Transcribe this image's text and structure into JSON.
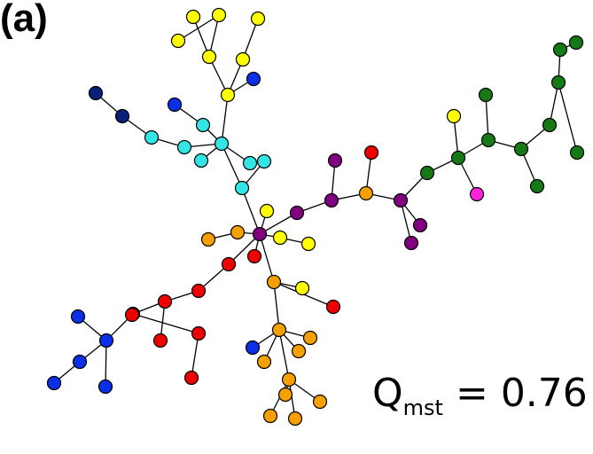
{
  "panel_label": "(a)",
  "metric": {
    "symbol": "Q",
    "subscript": "mst",
    "equals": "=",
    "value": "0.76"
  },
  "colors": {
    "yellow": "#ffff00",
    "cyan": "#33e5e5",
    "darkblue": "#0a1f7a",
    "blue": "#0a2fe6",
    "purple": "#800080",
    "red": "#ee0000",
    "orange": "#f5a000",
    "green": "#157a15",
    "magenta": "#ff22dd"
  },
  "graph": {
    "nodes": [
      {
        "id": "y1",
        "c": "yellow"
      },
      {
        "id": "y2",
        "c": "yellow"
      },
      {
        "id": "y3",
        "c": "yellow"
      },
      {
        "id": "y4",
        "c": "yellow"
      },
      {
        "id": "y5",
        "c": "yellow"
      },
      {
        "id": "y6",
        "c": "yellow"
      },
      {
        "id": "y7",
        "c": "yellow"
      },
      {
        "id": "b1",
        "c": "blue"
      },
      {
        "id": "d1",
        "c": "darkblue"
      },
      {
        "id": "d2",
        "c": "darkblue"
      },
      {
        "id": "b2",
        "c": "blue"
      },
      {
        "id": "c1",
        "c": "cyan"
      },
      {
        "id": "c2",
        "c": "cyan"
      },
      {
        "id": "c3",
        "c": "cyan"
      },
      {
        "id": "c4",
        "c": "cyan"
      },
      {
        "id": "c5",
        "c": "cyan"
      },
      {
        "id": "c6",
        "c": "cyan"
      },
      {
        "id": "c7",
        "c": "cyan"
      },
      {
        "id": "c8",
        "c": "cyan"
      },
      {
        "id": "hub",
        "c": "purple"
      },
      {
        "id": "y8",
        "c": "yellow"
      },
      {
        "id": "o1",
        "c": "orange"
      },
      {
        "id": "o2",
        "c": "orange"
      },
      {
        "id": "y9",
        "c": "yellow"
      },
      {
        "id": "y10",
        "c": "yellow"
      },
      {
        "id": "r1",
        "c": "red"
      },
      {
        "id": "p1",
        "c": "purple"
      },
      {
        "id": "p2",
        "c": "purple"
      },
      {
        "id": "p3",
        "c": "purple"
      },
      {
        "id": "o3",
        "c": "orange"
      },
      {
        "id": "r2",
        "c": "red"
      },
      {
        "id": "p4",
        "c": "purple"
      },
      {
        "id": "p5",
        "c": "purple"
      },
      {
        "id": "p6",
        "c": "purple"
      },
      {
        "id": "g1",
        "c": "green"
      },
      {
        "id": "g2",
        "c": "green"
      },
      {
        "id": "y11",
        "c": "yellow"
      },
      {
        "id": "m1",
        "c": "magenta"
      },
      {
        "id": "g3",
        "c": "green"
      },
      {
        "id": "g4",
        "c": "green"
      },
      {
        "id": "g5",
        "c": "green"
      },
      {
        "id": "g6",
        "c": "green"
      },
      {
        "id": "g7",
        "c": "green"
      },
      {
        "id": "g8",
        "c": "green"
      },
      {
        "id": "g9",
        "c": "green"
      },
      {
        "id": "g10",
        "c": "green"
      },
      {
        "id": "g11",
        "c": "green"
      },
      {
        "id": "r3",
        "c": "red"
      },
      {
        "id": "r4",
        "c": "red"
      },
      {
        "id": "r5",
        "c": "red"
      },
      {
        "id": "r6",
        "c": "red"
      },
      {
        "id": "r7",
        "c": "red"
      },
      {
        "id": "r8",
        "c": "red"
      },
      {
        "id": "r9",
        "c": "red"
      },
      {
        "id": "r10",
        "c": "red"
      },
      {
        "id": "b3",
        "c": "blue"
      },
      {
        "id": "b4",
        "c": "blue"
      },
      {
        "id": "b5",
        "c": "blue"
      },
      {
        "id": "b6",
        "c": "blue"
      },
      {
        "id": "b7",
        "c": "blue"
      },
      {
        "id": "o4",
        "c": "orange"
      },
      {
        "id": "y12",
        "c": "yellow"
      },
      {
        "id": "r11",
        "c": "red"
      },
      {
        "id": "o5",
        "c": "orange"
      },
      {
        "id": "b8",
        "c": "blue"
      },
      {
        "id": "o6",
        "c": "orange"
      },
      {
        "id": "o7",
        "c": "orange"
      },
      {
        "id": "o8",
        "c": "orange"
      },
      {
        "id": "o9",
        "c": "orange"
      },
      {
        "id": "o10",
        "c": "orange"
      },
      {
        "id": "o11",
        "c": "orange"
      },
      {
        "id": "o12",
        "c": "orange"
      },
      {
        "id": "o13",
        "c": "orange"
      }
    ],
    "edges": [
      [
        "y1",
        "y2"
      ],
      [
        "y2",
        "y4"
      ],
      [
        "y3",
        "y4"
      ],
      [
        "y4",
        "y7"
      ],
      [
        "y5",
        "y6"
      ],
      [
        "y6",
        "y7"
      ],
      [
        "b1",
        "y7"
      ],
      [
        "y7",
        "c4"
      ],
      [
        "d1",
        "d2"
      ],
      [
        "d2",
        "c1"
      ],
      [
        "c1",
        "c2"
      ],
      [
        "b2",
        "c3"
      ],
      [
        "c3",
        "c4"
      ],
      [
        "c2",
        "c4"
      ],
      [
        "c4",
        "c5"
      ],
      [
        "c4",
        "c6"
      ],
      [
        "c4",
        "c8"
      ],
      [
        "c8",
        "c7"
      ],
      [
        "c7",
        "c6"
      ],
      [
        "c8",
        "hub"
      ],
      [
        "y8",
        "hub"
      ],
      [
        "o1",
        "o2"
      ],
      [
        "o2",
        "hub"
      ],
      [
        "hub",
        "y9"
      ],
      [
        "y9",
        "y10"
      ],
      [
        "hub",
        "r1"
      ],
      [
        "hub",
        "p1"
      ],
      [
        "p1",
        "p3"
      ],
      [
        "p2",
        "p3"
      ],
      [
        "p3",
        "o3"
      ],
      [
        "r2",
        "o3"
      ],
      [
        "o3",
        "p4"
      ],
      [
        "p4",
        "p5"
      ],
      [
        "p4",
        "p6"
      ],
      [
        "p4",
        "g1"
      ],
      [
        "g1",
        "g2"
      ],
      [
        "g2",
        "y11"
      ],
      [
        "g2",
        "m1"
      ],
      [
        "g2",
        "g3"
      ],
      [
        "g3",
        "g4"
      ],
      [
        "g3",
        "g5"
      ],
      [
        "g5",
        "g6"
      ],
      [
        "g5",
        "g7"
      ],
      [
        "g7",
        "g8"
      ],
      [
        "g8",
        "g9"
      ],
      [
        "g8",
        "g10"
      ],
      [
        "g10",
        "g11"
      ],
      [
        "hub",
        "r3"
      ],
      [
        "r3",
        "r4"
      ],
      [
        "r4",
        "r5"
      ],
      [
        "r5",
        "r6"
      ],
      [
        "r5",
        "r7"
      ],
      [
        "r7",
        "r8"
      ],
      [
        "r7",
        "r9"
      ],
      [
        "r9",
        "r10"
      ],
      [
        "r8",
        "b3"
      ],
      [
        "b3",
        "b4"
      ],
      [
        "b3",
        "b5"
      ],
      [
        "b3",
        "b6"
      ],
      [
        "b5",
        "b7"
      ],
      [
        "hub",
        "o4"
      ],
      [
        "o4",
        "y12"
      ],
      [
        "o4",
        "r11"
      ],
      [
        "o4",
        "o5"
      ],
      [
        "o5",
        "b8"
      ],
      [
        "o5",
        "o6"
      ],
      [
        "o5",
        "o7"
      ],
      [
        "o5",
        "o8"
      ],
      [
        "o5",
        "o9"
      ],
      [
        "o9",
        "o10"
      ],
      [
        "o9",
        "o11"
      ],
      [
        "o9",
        "o12"
      ],
      [
        "o9",
        "o13"
      ]
    ]
  }
}
